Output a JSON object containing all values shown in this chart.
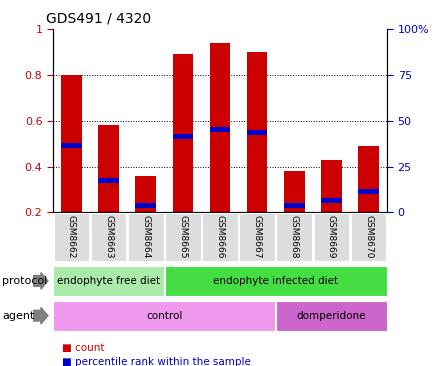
{
  "title": "GDS491 / 4320",
  "samples": [
    "GSM8662",
    "GSM8663",
    "GSM8664",
    "GSM8665",
    "GSM8666",
    "GSM8667",
    "GSM8668",
    "GSM8669",
    "GSM8670"
  ],
  "bar_heights": [
    0.8,
    0.58,
    0.36,
    0.89,
    0.94,
    0.9,
    0.38,
    0.43,
    0.49
  ],
  "blue_marks": [
    0.49,
    0.34,
    0.23,
    0.53,
    0.56,
    0.55,
    0.23,
    0.25,
    0.29
  ],
  "bar_color": "#cc0000",
  "blue_color": "#0000cc",
  "ylim_left": [
    0.2,
    1.0
  ],
  "ylim_right": [
    0,
    100
  ],
  "yticks_left": [
    0.2,
    0.4,
    0.6,
    0.8,
    1.0
  ],
  "yticks_right": [
    0,
    25,
    50,
    75,
    100
  ],
  "ytick_labels_right": [
    "0",
    "25",
    "50",
    "75",
    "100%"
  ],
  "ytick_labels_left": [
    "0.2",
    "0.4",
    "0.6",
    "0.8",
    "1"
  ],
  "protocol_groups": [
    {
      "label": "endophyte free diet",
      "start": 0,
      "end": 3,
      "color": "#aaeaaa"
    },
    {
      "label": "endophyte infected diet",
      "start": 3,
      "end": 9,
      "color": "#44dd44"
    }
  ],
  "agent_groups": [
    {
      "label": "control",
      "start": 0,
      "end": 6,
      "color": "#ee99ee"
    },
    {
      "label": "domperidone",
      "start": 6,
      "end": 9,
      "color": "#cc66cc"
    }
  ],
  "legend_items": [
    {
      "label": "count",
      "color": "#cc0000"
    },
    {
      "label": "percentile rank within the sample",
      "color": "#0000cc"
    }
  ],
  "bar_bottom": 0.2,
  "bar_width": 0.55,
  "protocol_label": "protocol",
  "agent_label": "agent",
  "tick_label_color_left": "#cc0000",
  "tick_label_color_right": "#0000cc",
  "bg_color": "#dddddd"
}
